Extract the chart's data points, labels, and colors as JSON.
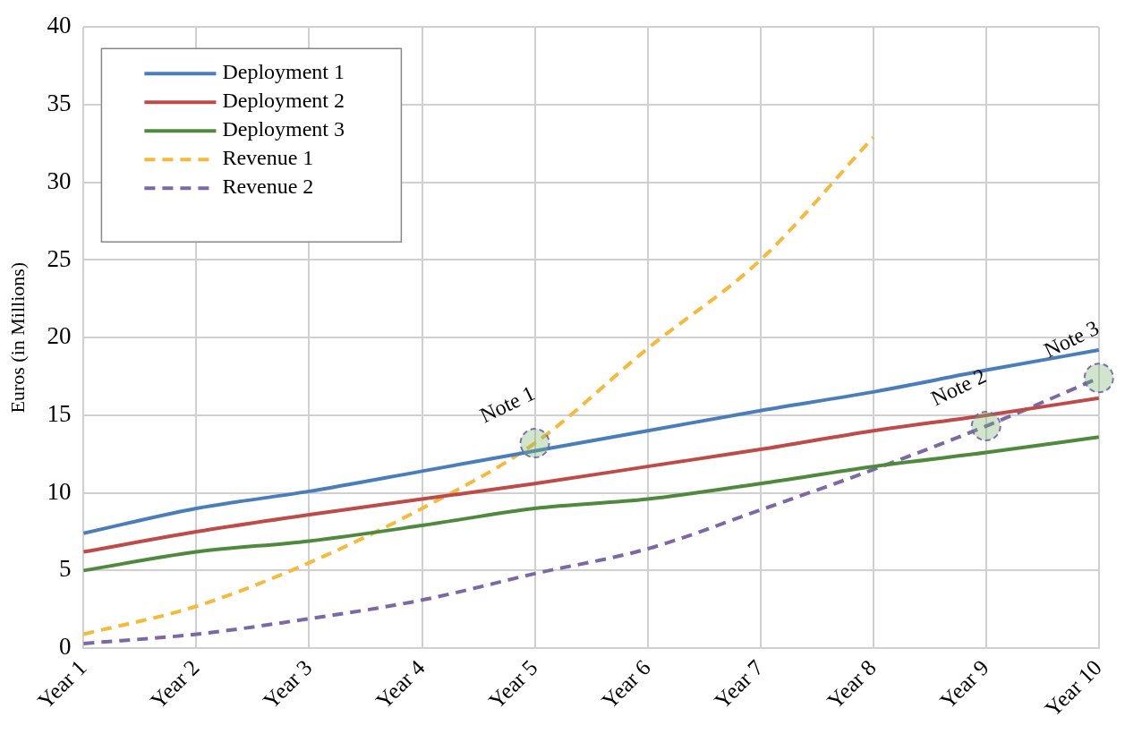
{
  "chart_data": {
    "type": "line",
    "ylabel": "Euros (in Millions)",
    "categories": [
      "Year 1",
      "Year 2",
      "Year 3",
      "Year 4",
      "Year 5",
      "Year 6",
      "Year 7",
      "Year 8",
      "Year 9",
      "Year 10"
    ],
    "ylim": [
      0,
      40
    ],
    "yticks": [
      0,
      5,
      10,
      15,
      20,
      25,
      30,
      35,
      40
    ],
    "grid": true,
    "legend": "top left",
    "marker": "none",
    "series": [
      {
        "name": "Deployment 1",
        "color": "#4a7ebb",
        "line_style": "solid",
        "values": [
          7.4,
          9.0,
          10.1,
          11.4,
          12.7,
          14.0,
          15.3,
          16.5,
          17.9,
          19.2
        ]
      },
      {
        "name": "Deployment 2",
        "color": "#be4b48",
        "line_style": "solid",
        "values": [
          6.2,
          7.5,
          8.6,
          9.6,
          10.6,
          11.7,
          12.8,
          14.0,
          15.0,
          16.1
        ]
      },
      {
        "name": "Deployment 3",
        "color": "#4f8a3c",
        "line_style": "solid",
        "values": [
          5.0,
          6.2,
          6.9,
          7.9,
          9.0,
          9.6,
          10.6,
          11.7,
          12.6,
          13.6
        ]
      },
      {
        "name": "Revenue 1",
        "color": "#f7b93a",
        "line_style": "dashed",
        "values": [
          0.9,
          2.7,
          5.5,
          9.0,
          13.2,
          19.3,
          25.0,
          32.9,
          null,
          null
        ]
      },
      {
        "name": "Revenue 2",
        "color": "#7b68a6",
        "line_style": "dashed",
        "values": [
          0.3,
          0.9,
          1.9,
          3.1,
          4.8,
          6.4,
          8.9,
          11.5,
          14.3,
          17.4
        ]
      }
    ],
    "annotations": [
      {
        "text": "Note 1",
        "x": "Year 5",
        "y": 13.2
      },
      {
        "text": "Note 2",
        "x": "Year 9",
        "y": 14.3
      },
      {
        "text": "Note 3",
        "x": "Year 10",
        "y": 17.4
      }
    ]
  }
}
